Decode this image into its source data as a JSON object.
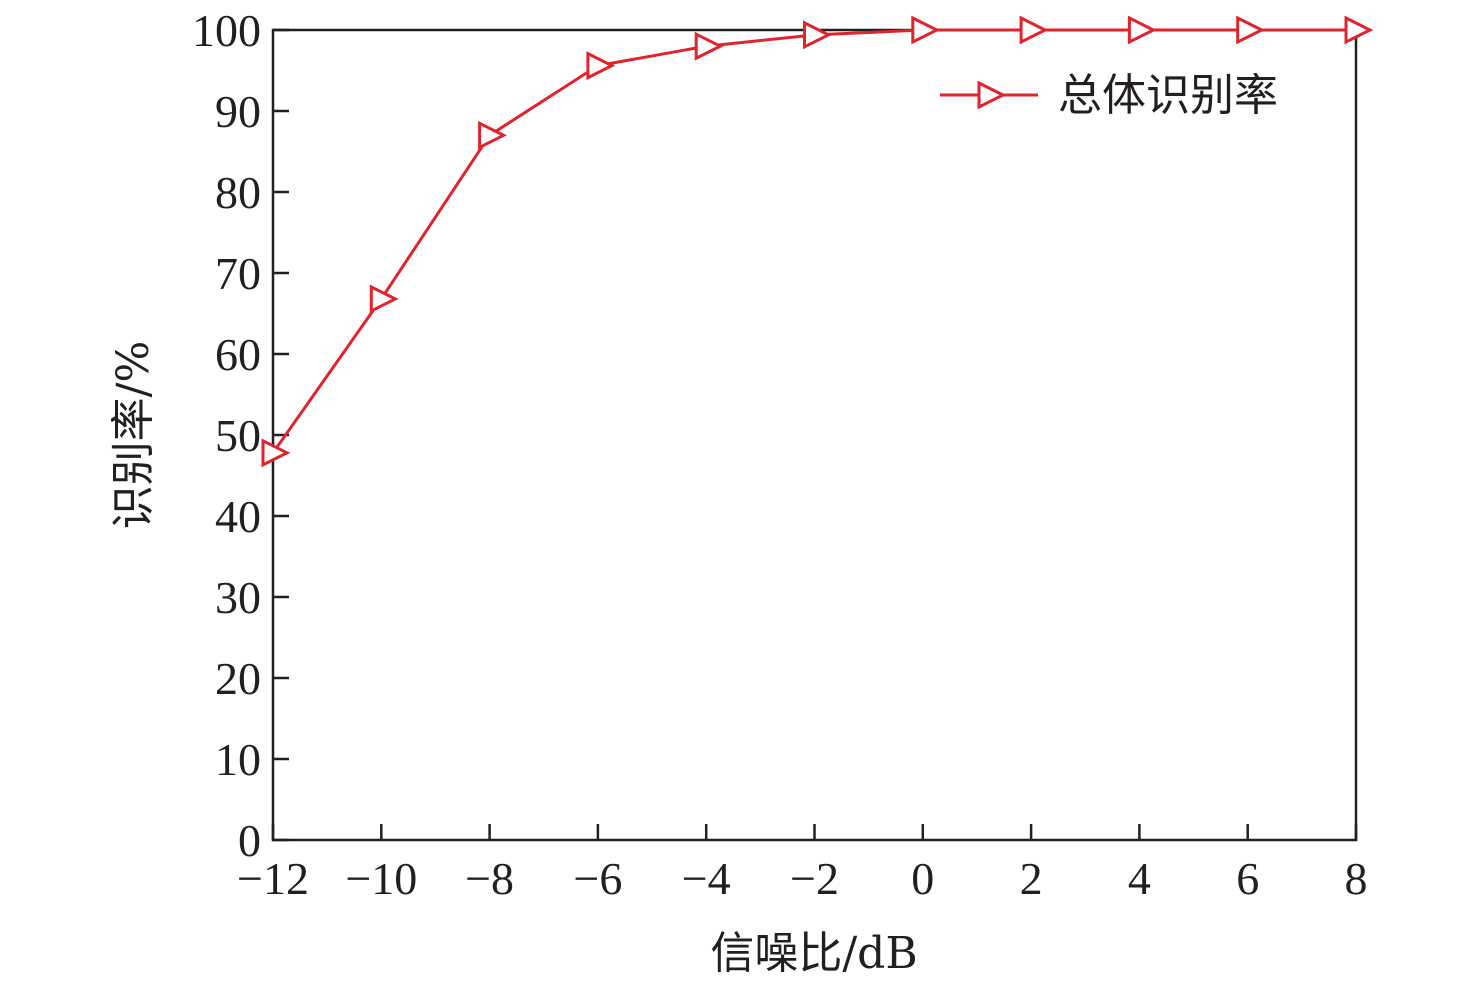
{
  "chart_data": {
    "type": "line",
    "x": [
      -12,
      -10,
      -8,
      -6,
      -4,
      -2,
      0,
      2,
      4,
      6,
      8
    ],
    "series": [
      {
        "name": "总体识别率",
        "values": [
          47.8,
          66.8,
          87.0,
          95.6,
          98.0,
          99.4,
          100,
          100,
          100,
          100,
          100
        ],
        "color": "#e0232c",
        "marker": "triangle-right-open"
      }
    ],
    "xlabel": "信噪比/dB",
    "ylabel": "识别率/%",
    "xlim": [
      -12,
      8
    ],
    "ylim": [
      0,
      100
    ],
    "xticks": [
      "−12",
      "−10",
      "−8",
      "−6",
      "−4",
      "−2",
      "0",
      "2",
      "4",
      "6",
      "8"
    ],
    "yticks": [
      "0",
      "10",
      "20",
      "30",
      "40",
      "50",
      "60",
      "70",
      "80",
      "90",
      "100"
    ],
    "grid": false,
    "legend_position": "top-right"
  }
}
